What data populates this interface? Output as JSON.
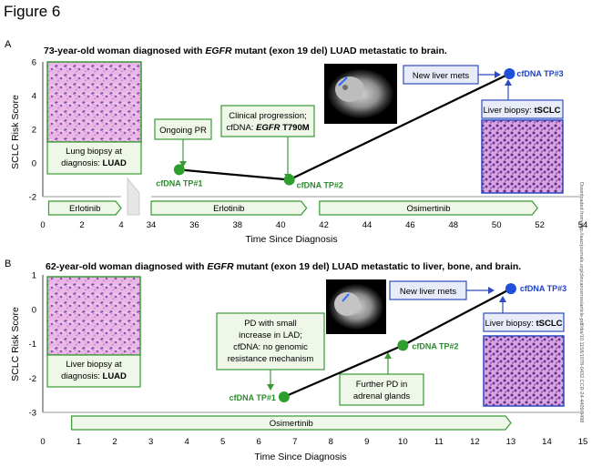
{
  "figure_title": "Figure 6",
  "side_note": "Downloaded from http://aacrjournals.org/clincancerres/article-pdf/doi/10.1158/1078-0432.CCR-24-4409/3498",
  "colors": {
    "green_line": "#3a9a35",
    "green_fill": "#eef7e8",
    "green_dot": "#2e9e2e",
    "green_text": "#2e8a2e",
    "blue_line": "#2f4bbf",
    "blue_fill": "#e7ecf8",
    "blue_dot": "#1f4fd8",
    "blue_text": "#1f3fc8",
    "path": "#000000",
    "he_stain": "#c77fc6"
  },
  "panels": [
    {
      "panel_label": "A",
      "title_parts": [
        "73-year-old woman diagnosed with ",
        "EGFR",
        " mutant (exon 19 del) LUAD metastatic to brain."
      ],
      "ylabel": "SCLC Risk Score",
      "xlabel": "Time Since Diagnosis",
      "ylim": [
        -2,
        6
      ],
      "yticks": [
        "-2",
        "0",
        "2",
        "4",
        "6"
      ],
      "xticks_left": [
        "0",
        "2",
        "4"
      ],
      "xticks_right": [
        "34",
        "36",
        "38",
        "40",
        "42",
        "44",
        "46",
        "48",
        "50",
        "52",
        "54"
      ],
      "therapies": [
        "Erlotinib",
        "Erlotinib",
        "Osimertinib"
      ],
      "biopsy_left": [
        "Lung biopsy at",
        "diagnosis: ",
        "LUAD"
      ],
      "biopsy_right": [
        "Liver biopsy: ",
        "tSCLC"
      ],
      "events": [
        "Ongoing PR",
        "Clinical progression;",
        "cfDNA: ",
        "EGFR",
        " T790M",
        "New liver mets"
      ],
      "timepoint_labels": [
        "cfDNA TP#1",
        "cfDNA TP#2",
        "cfDNA TP#3"
      ]
    },
    {
      "panel_label": "B",
      "title_parts": [
        "62-year-old woman diagnosed with ",
        "EGFR",
        " mutant (exon 19 del) LUAD metastatic to liver, bone, and brain."
      ],
      "ylabel": "SCLC Risk Score",
      "xlabel": "Time Since Diagnosis",
      "ylim": [
        -3,
        1
      ],
      "yticks": [
        "-3",
        "-2",
        "-1",
        "0",
        "1"
      ],
      "xticks": [
        "0",
        "1",
        "2",
        "3",
        "4",
        "5",
        "6",
        "7",
        "8",
        "9",
        "10",
        "11",
        "12",
        "13",
        "14",
        "15"
      ],
      "therapies": [
        "Osimertinib"
      ],
      "biopsy_left": [
        "Liver biopsy at",
        "diagnosis: ",
        "LUAD"
      ],
      "biopsy_right": [
        "Liver biopsy: ",
        "tSCLC"
      ],
      "events": [
        "PD with small",
        "increase in LAD;",
        "cfDNA: no genomic",
        "resistance mechanism",
        "Further PD in",
        "adrenal glands",
        "New liver mets"
      ],
      "timepoint_labels": [
        "cfDNA TP#1",
        "cfDNA TP#2",
        "cfDNA TP#3"
      ]
    }
  ],
  "chart_data": [
    {
      "type": "line",
      "title": "73-year-old woman diagnosed with EGFR mutant (exon 19 del) LUAD metastatic to brain.",
      "xlabel": "Time Since Diagnosis",
      "ylabel": "SCLC Risk Score",
      "xlim": [
        0,
        54
      ],
      "x_axis_break": [
        4,
        34
      ],
      "ylim": [
        -2,
        6
      ],
      "grid": false,
      "series": [
        {
          "x": [
            35.3,
            40.4,
            50.6
          ],
          "y": [
            -0.4,
            -1.0,
            5.3
          ],
          "point_labels": [
            "cfDNA TP#1",
            "cfDNA TP#2",
            "cfDNA TP#3"
          ]
        }
      ],
      "therapy_bars": [
        {
          "label": "Erlotinib",
          "start": 0.3,
          "end": 4
        },
        {
          "label": "Erlotinib",
          "start": 34,
          "end": 41.2
        },
        {
          "label": "Osimertinib",
          "start": 41.8,
          "end": 51.9
        }
      ]
    },
    {
      "type": "line",
      "title": "62-year-old woman diagnosed with EGFR mutant (exon 19 del) LUAD metastatic to liver, bone, and brain.",
      "xlabel": "Time Since Diagnosis",
      "ylabel": "SCLC Risk Score",
      "xlim": [
        0,
        15
      ],
      "ylim": [
        -3,
        1
      ],
      "grid": false,
      "series": [
        {
          "x": [
            6.7,
            10.0,
            13.0
          ],
          "y": [
            -2.55,
            -1.05,
            0.6
          ],
          "point_labels": [
            "cfDNA TP#1",
            "cfDNA TP#2",
            "cfDNA TP#3"
          ]
        }
      ],
      "therapy_bars": [
        {
          "label": "Osimertinib",
          "start": 0.8,
          "end": 13.0
        }
      ]
    }
  ]
}
